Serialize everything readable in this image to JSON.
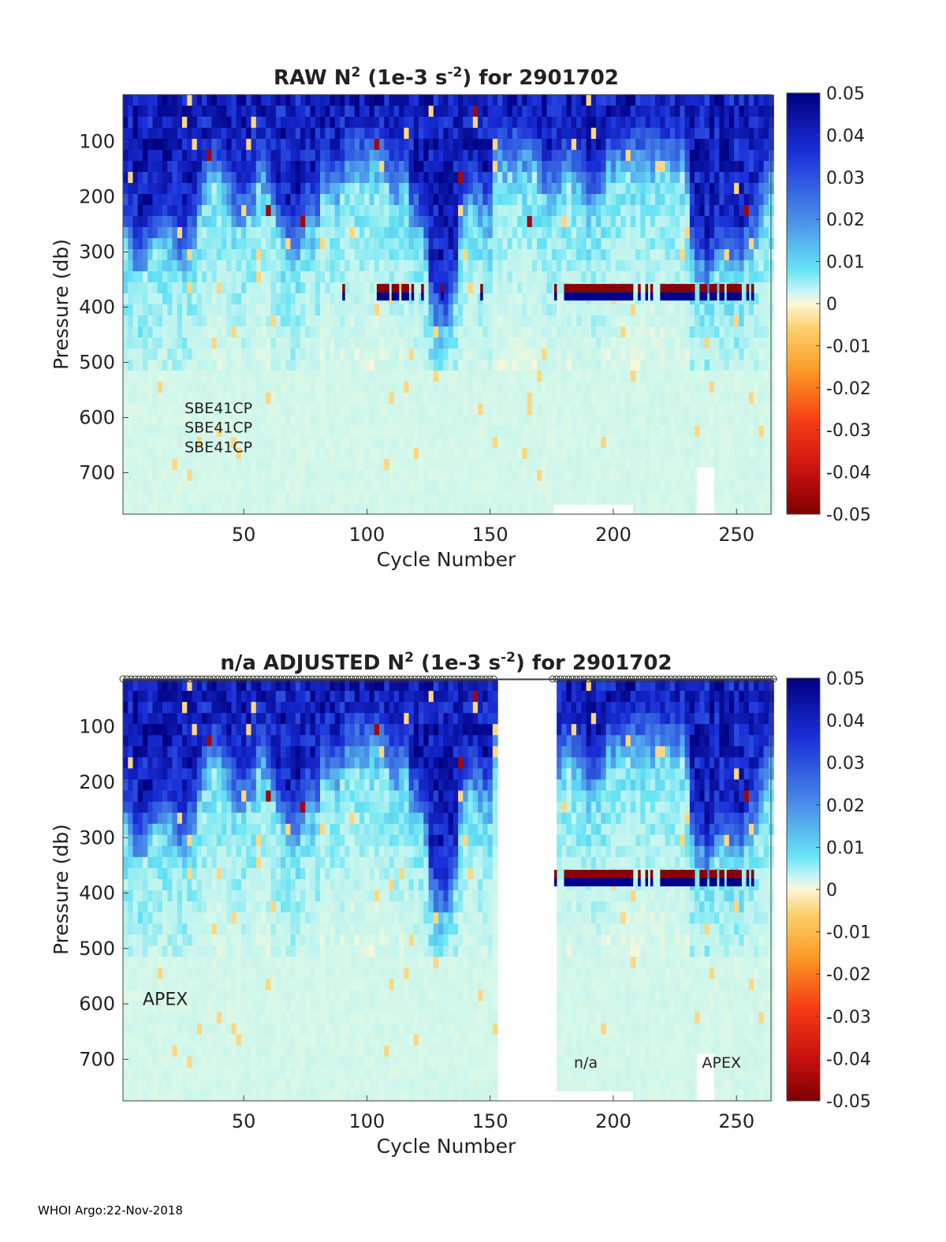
{
  "footer": "WHOI Argo:22-Nov-2018",
  "chart_data": [
    {
      "type": "heatmap",
      "title_main": "RAW N",
      "title_sup1": "2",
      "title_mid": " (1e-3 s",
      "title_sup2": "-2",
      "title_end": ") for 2901702",
      "xlabel": "Cycle Number",
      "ylabel": "Pressure (db)",
      "xlim": [
        1,
        264
      ],
      "ylim": [
        15,
        775
      ],
      "xticks": [
        50,
        100,
        150,
        200,
        250
      ],
      "yticks": [
        100,
        200,
        300,
        400,
        500,
        600,
        700
      ],
      "colorbar": {
        "ticks": [
          "0.05",
          "0.04",
          "0.03",
          "0.02",
          "0.01",
          "0",
          "-0.01",
          "-0.02",
          "-0.03",
          "-0.04",
          "-0.05"
        ],
        "range": [
          -0.05,
          0.05
        ]
      },
      "annotations": [
        {
          "text": "SBE41CP",
          "x": 26,
          "y": 592
        },
        {
          "text": "SBE41CP",
          "x": 26,
          "y": 627
        },
        {
          "text": "SBE41CP",
          "x": 26,
          "y": 663
        }
      ],
      "gaps": [],
      "flag_band_pressure": [
        358,
        388
      ],
      "flag_cycles": [
        90,
        104,
        105,
        106,
        107,
        108,
        110,
        111,
        112,
        114,
        115,
        116,
        118,
        122,
        130,
        146,
        176,
        180,
        181,
        182,
        183,
        184,
        185,
        186,
        187,
        188,
        189,
        190,
        191,
        192,
        193,
        194,
        195,
        196,
        197,
        198,
        199,
        200,
        201,
        202,
        203,
        204,
        205,
        206,
        207,
        210,
        213,
        215,
        219,
        220,
        221,
        222,
        223,
        224,
        225,
        226,
        227,
        228,
        229,
        230,
        231,
        232,
        235,
        236,
        237,
        239,
        240,
        241,
        243,
        244,
        246,
        247,
        248,
        249,
        250,
        251,
        254,
        256
      ],
      "station_markers": false
    },
    {
      "type": "heatmap",
      "title_main": "n/a  ADJUSTED N",
      "title_sup1": "2",
      "title_mid": " (1e-3 s",
      "title_sup2": "-2",
      "title_end": ") for 2901702",
      "xlabel": "Cycle Number",
      "ylabel": "Pressure (db)",
      "xlim": [
        1,
        264
      ],
      "ylim": [
        15,
        775
      ],
      "xticks": [
        50,
        100,
        150,
        200,
        250
      ],
      "yticks": [
        100,
        200,
        300,
        400,
        500,
        600,
        700
      ],
      "colorbar": {
        "ticks": [
          "0.05",
          "0.04",
          "0.03",
          "0.02",
          "0.01",
          "0",
          "-0.01",
          "-0.02",
          "-0.03",
          "-0.04",
          "-0.05"
        ],
        "range": [
          -0.05,
          0.05
        ]
      },
      "annotations": [
        {
          "text": "APEX",
          "x": 9,
          "y": 602
        },
        {
          "text": "n/a",
          "x": 184,
          "y": 715
        },
        {
          "text": "APEX",
          "x": 236,
          "y": 715
        }
      ],
      "gaps": [
        [
          152,
          175
        ]
      ],
      "flag_band_pressure": [
        358,
        388
      ],
      "flag_cycles": [
        176,
        180,
        181,
        182,
        183,
        184,
        185,
        186,
        187,
        188,
        189,
        190,
        191,
        192,
        193,
        194,
        195,
        196,
        197,
        198,
        199,
        200,
        201,
        202,
        203,
        204,
        205,
        206,
        207,
        210,
        213,
        215,
        219,
        220,
        221,
        222,
        223,
        224,
        225,
        226,
        227,
        228,
        229,
        230,
        231,
        232,
        235,
        236,
        237,
        239,
        240,
        241,
        243,
        244,
        246,
        247,
        248,
        249,
        250,
        251,
        254,
        256
      ],
      "station_markers": true
    }
  ]
}
